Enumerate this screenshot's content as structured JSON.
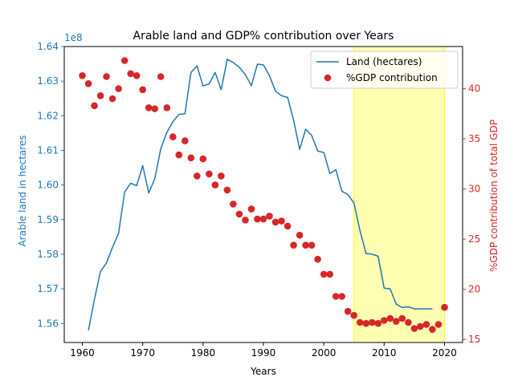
{
  "chart_data": {
    "type": "line",
    "title": "Arable land and GDP% contribution over Years",
    "xlabel": "Years",
    "ylabel_left": "Arable land in hectares",
    "ylabel_right": "%GDP contribution of total GDP",
    "left_axis_multiplier": "1e8",
    "xlim": [
      1957,
      2023
    ],
    "ylim_left": [
      155450000,
      164000000
    ],
    "ylim_right": [
      14.7,
      44.2
    ],
    "x_ticks": [
      1960,
      1970,
      1980,
      1990,
      2000,
      2010,
      2020
    ],
    "y_ticks_left": [
      1.56,
      1.57,
      1.58,
      1.59,
      1.6,
      1.61,
      1.62,
      1.63,
      1.64
    ],
    "y_ticks_right": [
      15,
      20,
      25,
      30,
      35,
      40
    ],
    "highlight_span": [
      2005,
      2020
    ],
    "legend": {
      "position": "top-right",
      "entries": [
        "Land (hectares)",
        "%GDP contribution"
      ]
    },
    "colors": {
      "land": "#1f77b4",
      "gdp": "#d62728",
      "highlight": "#ffff00",
      "left_axis": "#1f77b4",
      "right_axis": "#d62728"
    },
    "series": [
      {
        "name": "Land (hectares)",
        "axis": "left",
        "kind": "line",
        "x": [
          1961,
          1962,
          1963,
          1964,
          1965,
          1966,
          1967,
          1968,
          1969,
          1970,
          1971,
          1972,
          1973,
          1974,
          1975,
          1976,
          1977,
          1978,
          1979,
          1980,
          1981,
          1982,
          1983,
          1984,
          1985,
          1986,
          1987,
          1988,
          1989,
          1990,
          1991,
          1992,
          1993,
          1994,
          1995,
          1996,
          1997,
          1998,
          1999,
          2000,
          2001,
          2002,
          2003,
          2004,
          2005,
          2006,
          2007,
          2008,
          2009,
          2010,
          2011,
          2012,
          2013,
          2014,
          2015,
          2016,
          2017,
          2018
        ],
        "values": [
          155800000,
          156700000,
          157500000,
          157750000,
          158200000,
          158600000,
          159800000,
          160050000,
          159980000,
          160560000,
          159770000,
          160180000,
          161050000,
          161520000,
          161830000,
          162040000,
          162060000,
          163250000,
          163440000,
          162860000,
          162920000,
          163250000,
          162750000,
          163630000,
          163540000,
          163400000,
          163190000,
          162870000,
          163490000,
          163470000,
          163160000,
          162710000,
          162580000,
          162530000,
          161870000,
          161030000,
          161610000,
          161430000,
          160980000,
          160940000,
          160330000,
          160440000,
          159820000,
          159720000,
          159480000,
          158680000,
          158020000,
          158000000,
          157940000,
          157020000,
          157000000,
          156560000,
          156460000,
          156480000,
          156420000,
          156420000,
          156420000,
          156420000
        ]
      },
      {
        "name": "%GDP contribution",
        "axis": "right",
        "kind": "scatter",
        "x": [
          1960,
          1961,
          1962,
          1963,
          1964,
          1965,
          1966,
          1967,
          1968,
          1969,
          1970,
          1971,
          1972,
          1973,
          1974,
          1975,
          1976,
          1977,
          1978,
          1979,
          1980,
          1981,
          1982,
          1983,
          1984,
          1985,
          1986,
          1987,
          1988,
          1989,
          1990,
          1991,
          1992,
          1993,
          1994,
          1995,
          1996,
          1997,
          1998,
          1999,
          2000,
          2001,
          2002,
          2003,
          2004,
          2005,
          2006,
          2007,
          2008,
          2009,
          2010,
          2011,
          2012,
          2013,
          2014,
          2015,
          2016,
          2017,
          2018,
          2019,
          2020
        ],
        "values": [
          41.3,
          40.5,
          38.3,
          39.3,
          41.2,
          39.0,
          40.0,
          42.8,
          41.5,
          41.3,
          39.9,
          38.1,
          38.0,
          41.2,
          38.1,
          35.2,
          33.4,
          34.8,
          33.1,
          31.3,
          33.0,
          31.5,
          30.4,
          31.3,
          29.9,
          28.5,
          27.5,
          26.9,
          28.0,
          27.0,
          27.0,
          27.3,
          26.7,
          26.8,
          26.3,
          24.4,
          25.4,
          24.4,
          24.4,
          23.0,
          21.5,
          21.5,
          19.3,
          19.3,
          17.8,
          17.4,
          16.7,
          16.6,
          16.7,
          16.6,
          16.9,
          17.1,
          16.8,
          17.1,
          16.7,
          16.1,
          16.3,
          16.5,
          16.0,
          16.5,
          18.2
        ]
      }
    ]
  }
}
